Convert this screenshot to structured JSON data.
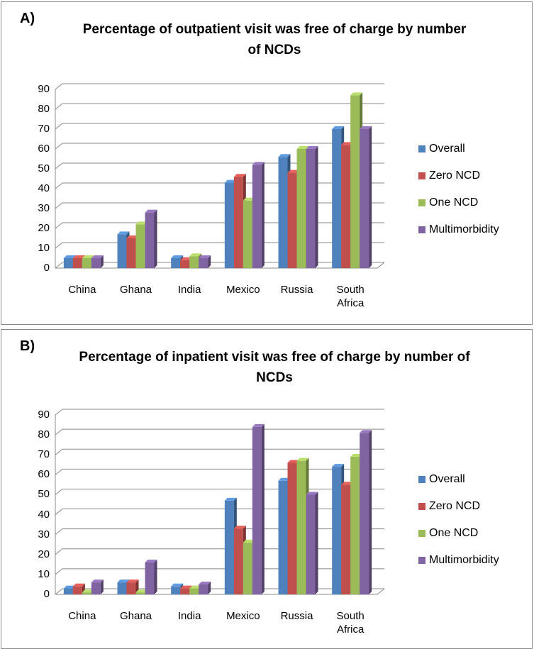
{
  "chart_data": [
    {
      "type": "bar3d",
      "panel_label": "A)",
      "title": "Percentage of outpatient visit was free of charge by number of NCDs",
      "categories": [
        "China",
        "Ghana",
        "India",
        "Mexico",
        "Russia",
        "South Africa"
      ],
      "series": [
        {
          "name": "Overall",
          "color": "#4f81bd",
          "values": [
            5,
            17,
            5,
            43,
            56,
            70
          ]
        },
        {
          "name": "Zero NCD",
          "color": "#c0504d",
          "values": [
            5,
            15,
            4,
            46,
            48,
            62
          ]
        },
        {
          "name": "One NCD",
          "color": "#9bbb59",
          "values": [
            5,
            22,
            6,
            34,
            60,
            87
          ]
        },
        {
          "name": "Multimorbidity",
          "color": "#8064a2",
          "values": [
            5,
            28,
            5,
            52,
            60,
            70
          ]
        }
      ],
      "ylim": [
        0,
        90
      ],
      "yticks": [
        0,
        10,
        20,
        30,
        40,
        50,
        60,
        70,
        80,
        90
      ],
      "grid": true,
      "legend": "right"
    },
    {
      "type": "bar3d",
      "panel_label": "B)",
      "title": "Percentage of inpatient visit was free of charge by number of NCDs",
      "categories": [
        "China",
        "Ghana",
        "India",
        "Mexico",
        "Russia",
        "South Africa"
      ],
      "series": [
        {
          "name": "Overall",
          "color": "#4f81bd",
          "values": [
            3,
            6,
            4,
            47,
            57,
            64
          ]
        },
        {
          "name": "Zero NCD",
          "color": "#c0504d",
          "values": [
            4,
            6,
            3,
            33,
            66,
            55
          ]
        },
        {
          "name": "One NCD",
          "color": "#9bbb59",
          "values": [
            1,
            1,
            3,
            26,
            67,
            69
          ]
        },
        {
          "name": "Multimorbidity",
          "color": "#8064a2",
          "values": [
            6,
            16,
            5,
            84,
            50,
            81
          ]
        }
      ],
      "ylim": [
        0,
        90
      ],
      "yticks": [
        0,
        10,
        20,
        30,
        40,
        50,
        60,
        70,
        80,
        90
      ],
      "grid": true,
      "legend": "right"
    }
  ]
}
